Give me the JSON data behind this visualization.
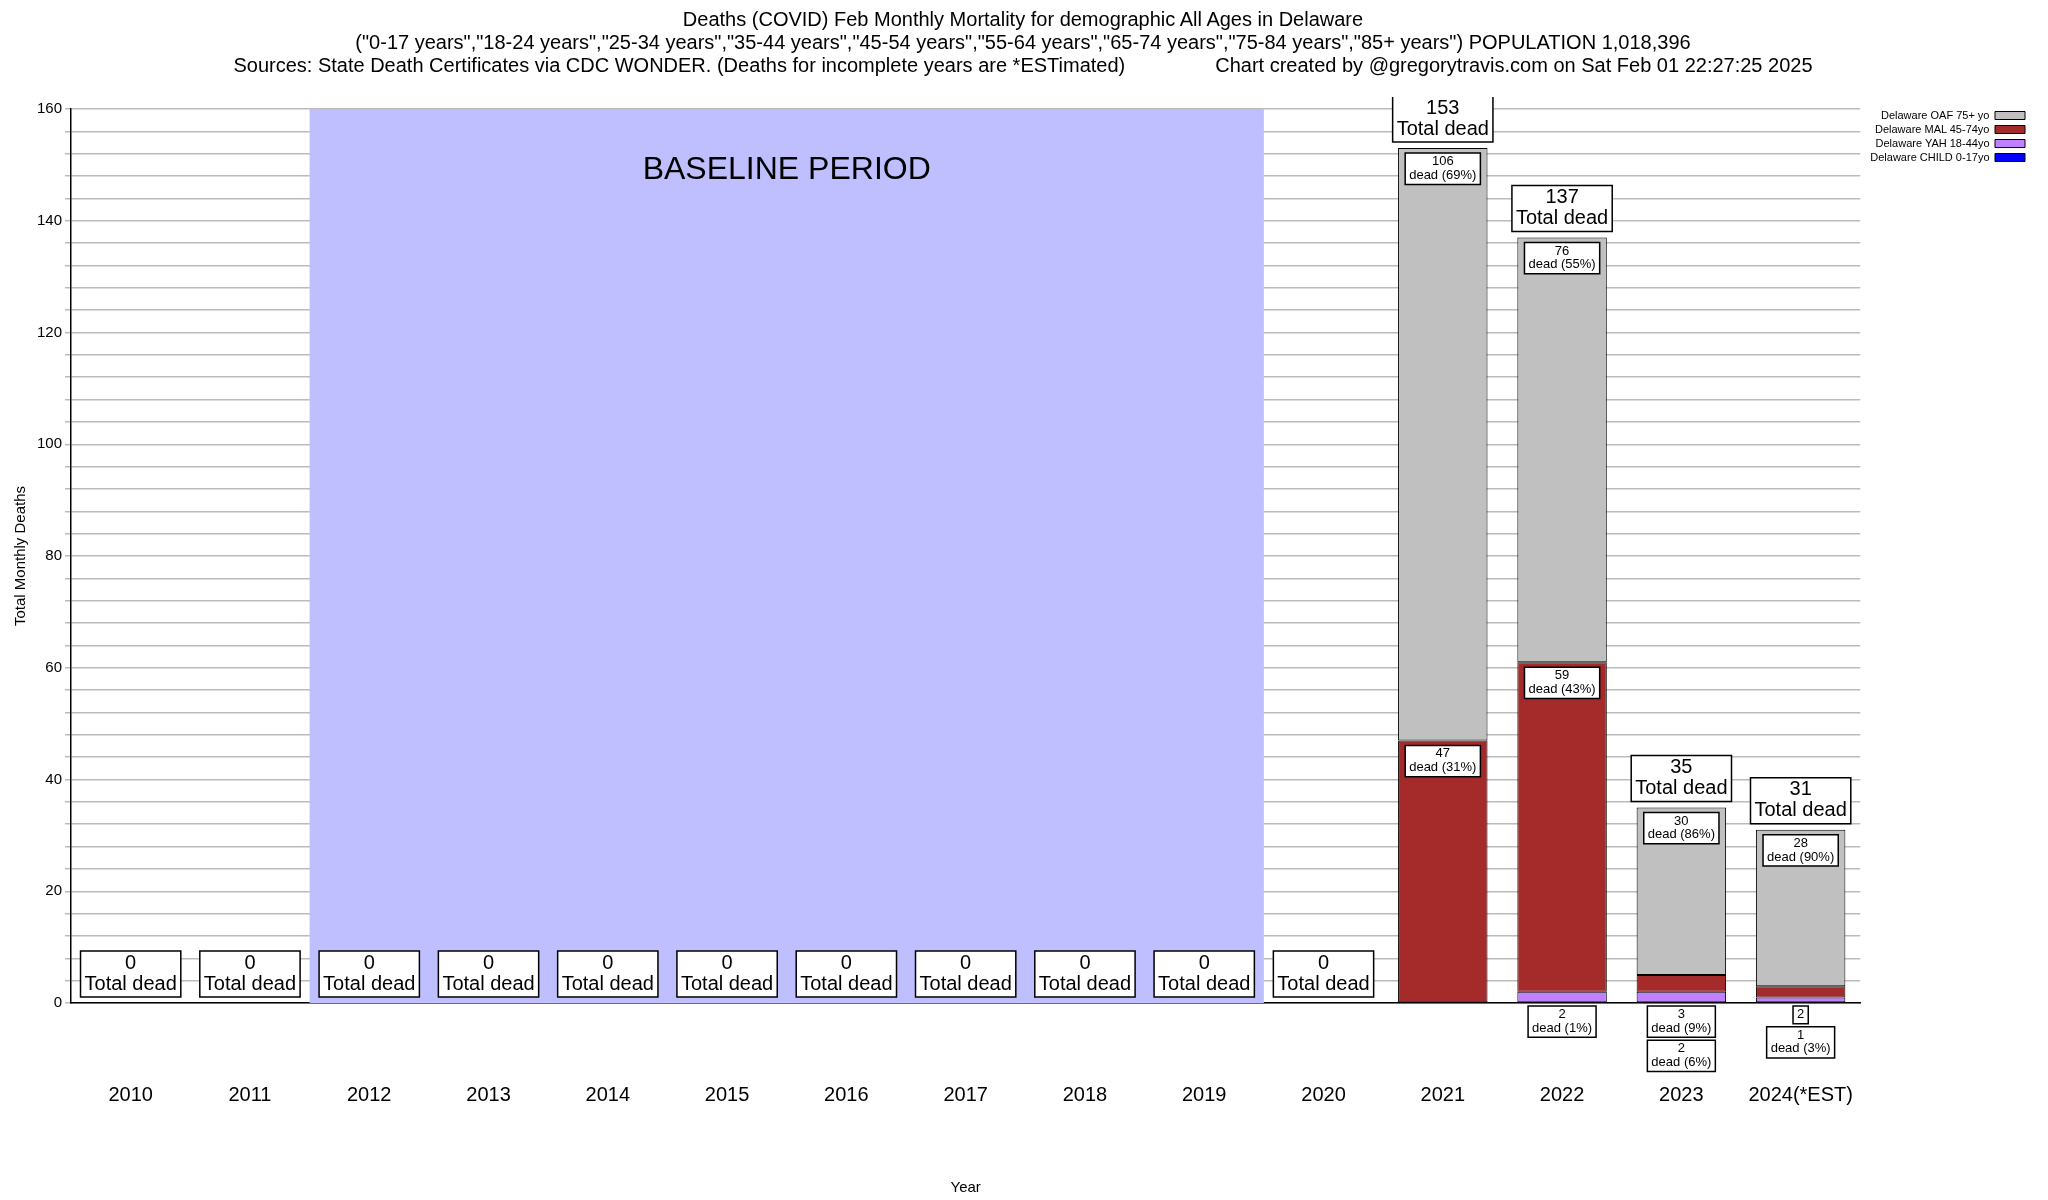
{
  "chart_data": {
    "type": "bar",
    "title": "Deaths (COVID) Feb Monthly Mortality for demographic All Ages in Delaware",
    "subtitle": "(\"0-17 years\",\"18-24 years\",\"25-34 years\",\"35-44 years\",\"45-54 years\",\"55-64 years\",\"65-74 years\",\"75-84 years\",\"85+ years\") POPULATION 1,018,396",
    "annotations": [
      "Sources: State Death Certificates via CDC WONDER. (Deaths for incomplete years are *ESTimated)",
      "Chart created by @gregorytravis.com on Sat Feb 01 22:27:25 2025"
    ],
    "xlabel": "Year",
    "ylabel": "Total Monthly Deaths",
    "categories": [
      "2010",
      "2011",
      "2012",
      "2013",
      "2014",
      "2015",
      "2016",
      "2017",
      "2018",
      "2019",
      "2020",
      "2021",
      "2022",
      "2023",
      "2024(*EST)"
    ],
    "stacked": true,
    "series": [
      {
        "name": "Delaware CHILD 0-17yo",
        "color": "#0000ff",
        "values": [
          0,
          0,
          0,
          0,
          0,
          0,
          0,
          0,
          0,
          0,
          0,
          0,
          0,
          0,
          0
        ]
      },
      {
        "name": "Delaware YAH 18-44yo",
        "color": "#c080ff",
        "values": [
          0,
          0,
          0,
          0,
          0,
          0,
          0,
          0,
          0,
          0,
          0,
          0,
          2,
          2,
          1
        ],
        "value_labels": [
          null,
          null,
          null,
          null,
          null,
          null,
          null,
          null,
          null,
          null,
          null,
          null,
          "2\ndead (1%)",
          "2\ndead (6%)",
          "1\ndead (3%)"
        ]
      },
      {
        "name": "Delaware MAL 45-74yo",
        "color": "#a52a2a",
        "values": [
          0,
          0,
          0,
          0,
          0,
          0,
          0,
          0,
          0,
          0,
          0,
          47,
          59,
          3,
          2
        ],
        "value_labels": [
          null,
          null,
          null,
          null,
          null,
          null,
          null,
          null,
          null,
          null,
          null,
          "47\ndead (31%)",
          "59\ndead (43%)",
          "3\ndead (9%)",
          "2"
        ]
      },
      {
        "name": "Delaware OAF 75+ yo",
        "color": "#c0c0c0",
        "values": [
          0,
          0,
          0,
          0,
          0,
          0,
          0,
          0,
          0,
          0,
          0,
          106,
          76,
          30,
          28
        ],
        "value_labels": [
          null,
          null,
          null,
          null,
          null,
          null,
          null,
          null,
          null,
          null,
          null,
          "106\ndead (69%)",
          "76\ndead (55%)",
          "30\ndead (86%)",
          "28\ndead (90%)"
        ]
      }
    ],
    "totals": [
      "0\nTotal dead",
      "0\nTotal dead",
      "0\nTotal dead",
      "0\nTotal dead",
      "0\nTotal dead",
      "0\nTotal dead",
      "0\nTotal dead",
      "0\nTotal dead",
      "0\nTotal dead",
      "0\nTotal dead",
      "0\nTotal dead",
      "153\nTotal dead",
      "137\nTotal dead",
      "35\nTotal dead",
      "31\nTotal dead"
    ],
    "bands": [
      {
        "axis": "x",
        "from": "2012",
        "to": "2019",
        "label": "BASELINE PERIOD",
        "color": "#bfbfff"
      }
    ],
    "ylim": [
      0,
      160
    ],
    "yticks": [
      0,
      {
        "value": 4,
        "label": null
      },
      {
        "value": 8,
        "label": null
      },
      {
        "value": 12,
        "label": null
      },
      {
        "value": 16,
        "label": null
      },
      20,
      {
        "value": 24,
        "label": null
      },
      {
        "value": 28,
        "label": null
      },
      {
        "value": 32,
        "label": null
      },
      {
        "value": 36,
        "label": null
      },
      40,
      {
        "value": 44,
        "label": null
      },
      {
        "value": 48,
        "label": null
      },
      {
        "value": 52,
        "label": null
      },
      {
        "value": 56,
        "label": null
      },
      60,
      {
        "value": 64,
        "label": null
      },
      {
        "value": 68,
        "label": null
      },
      {
        "value": 72,
        "label": null
      },
      {
        "value": 76,
        "label": null
      },
      80,
      {
        "value": 84,
        "label": null
      },
      {
        "value": 88,
        "label": null
      },
      {
        "value": 92,
        "label": null
      },
      {
        "value": 96,
        "label": null
      },
      100,
      {
        "value": 104,
        "label": null
      },
      {
        "value": 108,
        "label": null
      },
      {
        "value": 112,
        "label": null
      },
      {
        "value": 116,
        "label": null
      },
      120,
      {
        "value": 124,
        "label": null
      },
      {
        "value": 128,
        "label": null
      },
      {
        "value": 132,
        "label": null
      },
      {
        "value": 136,
        "label": null
      },
      140,
      {
        "value": 144,
        "label": null
      },
      {
        "value": 148,
        "label": null
      },
      {
        "value": 152,
        "label": null
      },
      {
        "value": 156,
        "label": null
      },
      160
    ],
    "grid": "y",
    "legend": "top right"
  }
}
